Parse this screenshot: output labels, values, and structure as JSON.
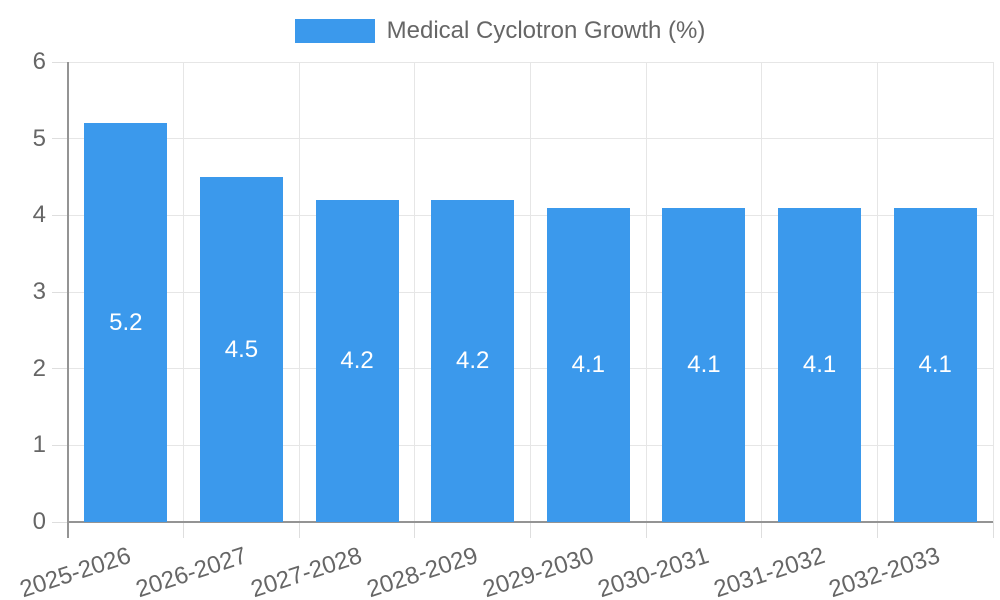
{
  "legend": {
    "label": "Medical Cyclotron Growth (%)",
    "position": "top"
  },
  "chart_data": {
    "type": "bar",
    "title": "Medical Cyclotron Growth (%)",
    "categories": [
      "2025-2026",
      "2026-2027",
      "2027-2028",
      "2028-2029",
      "2029-2030",
      "2030-2031",
      "2031-2032",
      "2032-2033"
    ],
    "values": [
      5.2,
      4.5,
      4.2,
      4.2,
      4.1,
      4.1,
      4.1,
      4.1
    ],
    "bar_labels": [
      "5.2",
      "4.5",
      "4.2",
      "4.2",
      "4.1",
      "4.1",
      "4.1",
      "4.1"
    ],
    "xlabel": "",
    "ylabel": "",
    "ylim": [
      0,
      6
    ],
    "yticks": [
      0,
      1,
      2,
      3,
      4,
      5,
      6
    ],
    "grid": true,
    "legend_position": "top",
    "colors": {
      "bar": "#3B99EC",
      "grid": "#e6e6e6",
      "axis": "#949494",
      "tick_mark": "#dedede",
      "tick_text": "#666666",
      "legend_text": "#666666",
      "bar_label_text": "#ffffff",
      "background": "#ffffff"
    }
  }
}
